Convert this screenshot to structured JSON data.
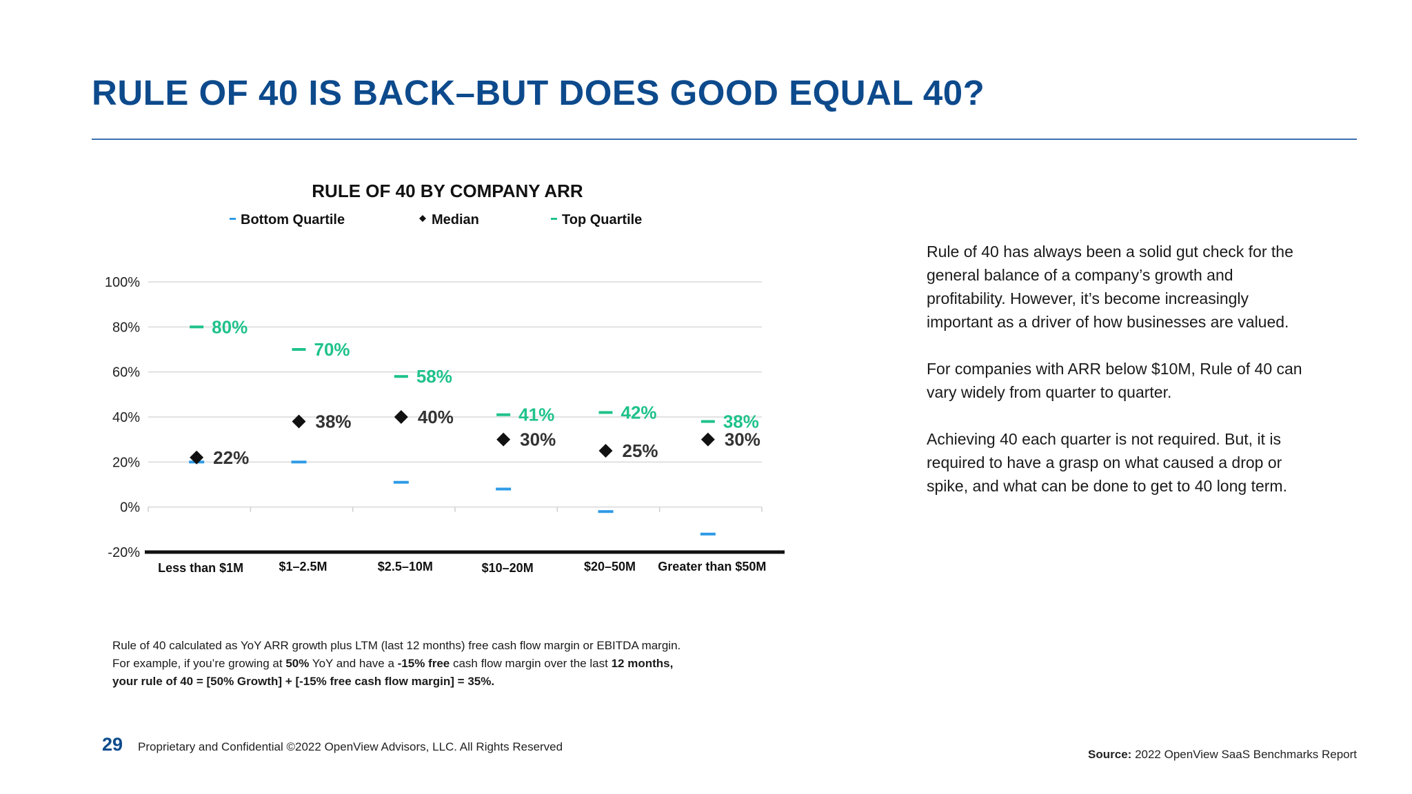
{
  "slide": {
    "title": "RULE OF 40 IS BACK–BUT DOES GOOD EQUAL 40?",
    "page_number": "29",
    "copyright": "Proprietary and Confidential ©2022 OpenView Advisors, LLC. All Rights Reserved",
    "source_label": "Source:",
    "source_text": "2022 OpenView SaaS Benchmarks Report"
  },
  "description": {
    "p1": "Rule of 40 has always been a solid gut check for the general balance of a company’s growth and profitability. However, it’s become increasingly important as a driver of how businesses are valued.",
    "p2": "For companies with ARR below $10M, Rule of 40 can vary widely from quarter to quarter.",
    "p3": "Achieving 40 each quarter is not required. But, it is required to have a grasp on what caused a drop or spike, and what can be done to get to 40 long term."
  },
  "footnote": {
    "line1": "Rule of 40 calculated as YoY ARR growth plus LTM (last 12 months) free cash flow margin or EBITDA margin.",
    "line2_a": "For example, if you’re growing at ",
    "line2_b": "50%",
    "line2_c": " YoY and have a ",
    "line2_d": "-15% free",
    "line2_e": " cash flow margin over the last ",
    "line2_f": "12 months,",
    "line3": "your rule of 40 = [50% Growth] + [-15% free cash flow margin] = 35%."
  },
  "colors": {
    "bottom": "#2e9be6",
    "top": "#1fc28a",
    "median": "#111111",
    "label_dark": "#333333",
    "title": "#0d4a8c"
  },
  "chart_data": {
    "type": "scatter",
    "title": "RULE OF 40 BY COMPANY ARR",
    "categories": [
      "Less than $1M",
      "$1–2.5M",
      "$2.5–10M",
      "$10–20M",
      "$20–50M",
      "Greater than $50M"
    ],
    "series": [
      {
        "name": "Bottom Quartile",
        "marker": "dash",
        "values": [
          20,
          20,
          11,
          8,
          -2,
          -12
        ]
      },
      {
        "name": "Median",
        "marker": "diamond",
        "values": [
          22,
          38,
          40,
          30,
          25,
          30
        ],
        "labels": [
          "22%",
          "38%",
          "40%",
          "30%",
          "25%",
          "30%"
        ]
      },
      {
        "name": "Top Quartile",
        "marker": "dash",
        "values": [
          80,
          70,
          58,
          41,
          42,
          38
        ],
        "labels": [
          "80%",
          "70%",
          "58%",
          "41%",
          "42%",
          "38%"
        ]
      }
    ],
    "yticks": [
      "100%",
      "80%",
      "60%",
      "40%",
      "20%",
      "0%",
      "-20%"
    ],
    "ylim": [
      -20,
      100
    ],
    "grid": true,
    "legend_position": "top"
  }
}
